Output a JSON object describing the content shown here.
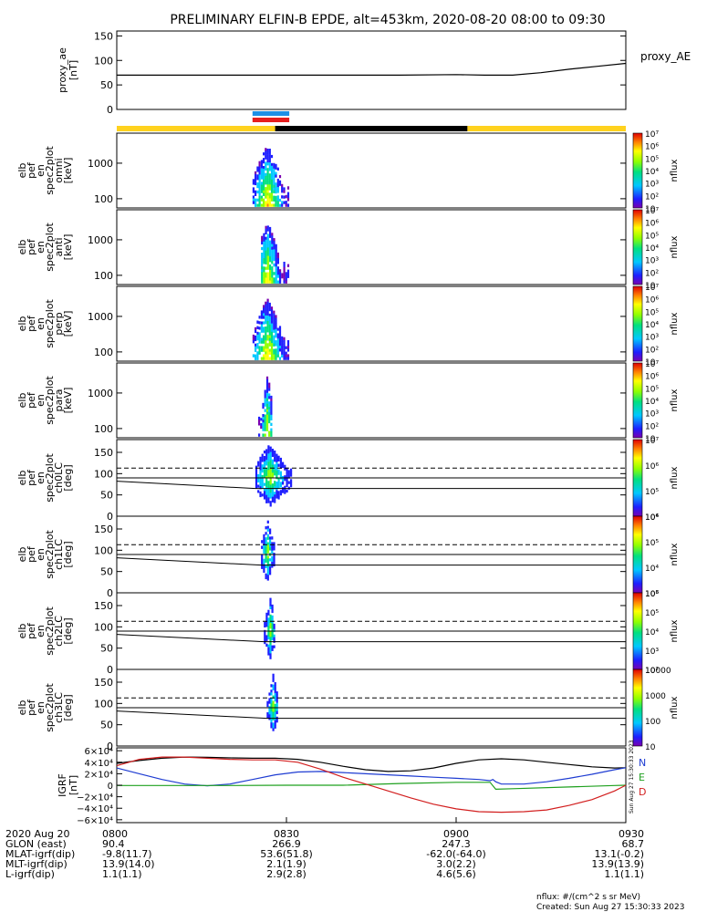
{
  "title": "PRELIMINARY ELFIN-B EPDE, alt=453km, 2020-08-20 08:00 to 09:30",
  "footer": {
    "units": "nflux: #/(cm^2 s sr MeV)",
    "created": "Created: Sun Aug 27 15:30:33 2023",
    "side_stamp": "Sun Aug 27 15:30:33 2023"
  },
  "colors": {
    "trace_black": "#000000",
    "bar_yellow": "#ffd21e",
    "bar_black": "#000000",
    "bar_blue": "#1e90e6",
    "bar_red": "#e61e1e",
    "grf_n": "#1e3cd2",
    "grf_e": "#1ea01e",
    "grf_d": "#d21e1e",
    "grf_total": "#000000"
  },
  "time_axis": {
    "start": "08:00",
    "end": "09:30",
    "ticks": [
      {
        "t": 0,
        "label": "0800"
      },
      {
        "t": 30,
        "label": "0830"
      },
      {
        "t": 60,
        "label": "0900"
      },
      {
        "t": 90,
        "label": "0930"
      }
    ]
  },
  "ephemeris": {
    "rows": [
      {
        "name": "2020 Aug 20",
        "values": [
          "0800",
          "0830",
          "0900",
          "0930"
        ]
      },
      {
        "name": "GLON (east)",
        "values": [
          "90.4",
          "266.9",
          "247.3",
          "68.7"
        ]
      },
      {
        "name": "MLAT-igrf(dip)",
        "values": [
          "-9.8(11.7)",
          "53.6(51.8)",
          "-62.0(-64.0)",
          "13.1(-0.2)"
        ]
      },
      {
        "name": "MLT-igrf(dip)",
        "values": [
          "13.9(14.0)",
          "2.1(1.9)",
          "3.0(2.2)",
          "13.9(13.9)"
        ]
      },
      {
        "name": "L-igrf(dip)",
        "values": [
          "1.1(1.1)",
          "2.9(2.8)",
          "4.6(5.6)",
          "1.1(1.1)"
        ]
      }
    ]
  },
  "chart_data": [
    {
      "type": "line",
      "ylabel": [
        "proxy_ae",
        "[nT]"
      ],
      "ylim": [
        0,
        160
      ],
      "yticks": [
        {
          "v": 0,
          "label": "0"
        },
        {
          "v": 50,
          "label": "50"
        },
        {
          "v": 100,
          "label": "100"
        },
        {
          "v": 150,
          "label": "150"
        }
      ],
      "series": [
        {
          "name": "proxy_AE",
          "x": [
            0,
            10,
            20,
            30,
            40,
            50,
            60,
            65,
            70,
            75,
            80,
            85,
            90
          ],
          "y": [
            70,
            70,
            70,
            70,
            70,
            70,
            71,
            70,
            70,
            75,
            82,
            88,
            94
          ]
        }
      ]
    },
    {
      "type": "bar",
      "segments": [
        {
          "t0": 0,
          "t1": 28,
          "color": "bar_yellow"
        },
        {
          "t0": 28,
          "t1": 62,
          "color": "bar_black"
        },
        {
          "t0": 62,
          "t1": 90,
          "color": "bar_yellow"
        }
      ],
      "markers": [
        {
          "t0": 24,
          "t1": 30.5,
          "color": "bar_blue"
        },
        {
          "t0": 24,
          "t1": 30.5,
          "color": "bar_red"
        }
      ]
    },
    {
      "type": "heatmap",
      "ylabel": [
        "elb",
        "pef",
        "en",
        "spec2plot",
        "omni",
        "[keV]"
      ],
      "yscale": "log",
      "ylim": [
        55,
        7000
      ],
      "yticks": [
        {
          "v": 100,
          "label": "100"
        },
        {
          "v": 1000,
          "label": "1000"
        }
      ],
      "colorbar": {
        "label": "nflux",
        "scale": "log",
        "range": [
          10,
          10000000
        ],
        "ticks": [
          "10",
          "10²",
          "10³",
          "10⁴",
          "10⁵",
          "10⁶",
          "10⁷"
        ]
      },
      "burst": {
        "t0": 24,
        "t1": 30.5,
        "peak_t": 26.5
      }
    },
    {
      "type": "heatmap",
      "ylabel": [
        "elb",
        "pef",
        "en",
        "spec2plot",
        "anti",
        "[keV]"
      ],
      "yscale": "log",
      "ylim": [
        55,
        7000
      ],
      "yticks": [
        {
          "v": 100,
          "label": "100"
        },
        {
          "v": 1000,
          "label": "1000"
        }
      ],
      "colorbar": {
        "label": "nflux",
        "scale": "log",
        "range": [
          10,
          10000000
        ],
        "ticks": [
          "10",
          "10²",
          "10³",
          "10⁴",
          "10⁵",
          "10⁶",
          "10⁷"
        ]
      },
      "burst": {
        "t0": 25.5,
        "t1": 30.5,
        "peak_t": 26.5
      }
    },
    {
      "type": "heatmap",
      "ylabel": [
        "elb",
        "pef",
        "en",
        "spec2plot",
        "perp",
        "[keV]"
      ],
      "yscale": "log",
      "ylim": [
        55,
        7000
      ],
      "yticks": [
        {
          "v": 100,
          "label": "100"
        },
        {
          "v": 1000,
          "label": "1000"
        }
      ],
      "colorbar": {
        "label": "nflux",
        "scale": "log",
        "range": [
          10,
          10000000
        ],
        "ticks": [
          "10",
          "10²",
          "10³",
          "10⁴",
          "10⁵",
          "10⁶",
          "10⁷"
        ]
      },
      "burst": {
        "t0": 24,
        "t1": 30.5,
        "peak_t": 26.5
      }
    },
    {
      "type": "heatmap",
      "ylabel": [
        "elb",
        "pef",
        "en",
        "spec2plot",
        "para",
        "[keV]"
      ],
      "yscale": "log",
      "ylim": [
        55,
        7000
      ],
      "yticks": [
        {
          "v": 100,
          "label": "100"
        },
        {
          "v": 1000,
          "label": "1000"
        }
      ],
      "colorbar": {
        "label": "nflux",
        "scale": "log",
        "range": [
          10,
          10000000
        ],
        "ticks": [
          "10",
          "10²",
          "10³",
          "10⁴",
          "10⁵",
          "10⁶",
          "10⁷"
        ]
      },
      "burst": {
        "t0": 25,
        "t1": 27.5,
        "peak_t": 26.5
      }
    },
    {
      "type": "heatmap",
      "ylabel": [
        "elb",
        "pef",
        "en",
        "spec2plot",
        "ch0LC",
        "[deg]"
      ],
      "ylim": [
        0,
        180
      ],
      "yticks": [
        {
          "v": 0,
          "label": "0"
        },
        {
          "v": 50,
          "label": "50"
        },
        {
          "v": 100,
          "label": "100"
        },
        {
          "v": 150,
          "label": "150"
        }
      ],
      "colorbar": {
        "label": "nflux",
        "scale": "log",
        "range": [
          10000,
          10000000
        ],
        "ticks": [
          "10⁴",
          "10⁵",
          "10⁶",
          "10⁷"
        ]
      },
      "lines": {
        "solid_top": 90,
        "solid_bottom": 65,
        "dashed": 113
      },
      "burst": {
        "t0": 24.5,
        "t1": 31,
        "peak_t": 27
      }
    },
    {
      "type": "heatmap",
      "ylabel": [
        "elb",
        "pef",
        "en",
        "spec2plot",
        "ch1LC",
        "[deg]"
      ],
      "ylim": [
        0,
        180
      ],
      "yticks": [
        {
          "v": 0,
          "label": "0"
        },
        {
          "v": 50,
          "label": "50"
        },
        {
          "v": 100,
          "label": "100"
        },
        {
          "v": 150,
          "label": "150"
        }
      ],
      "colorbar": {
        "label": "nflux",
        "scale": "log",
        "range": [
          1000,
          1000000
        ],
        "ticks": [
          "10³",
          "10⁴",
          "10⁵",
          "10⁶"
        ]
      },
      "lines": {
        "solid_top": 90,
        "solid_bottom": 65,
        "dashed": 113
      },
      "burst": {
        "t0": 25.5,
        "t1": 28,
        "peak_t": 26.5
      }
    },
    {
      "type": "heatmap",
      "ylabel": [
        "elb",
        "pef",
        "en",
        "spec2plot",
        "ch2LC",
        "[deg]"
      ],
      "ylim": [
        0,
        180
      ],
      "yticks": [
        {
          "v": 0,
          "label": "0"
        },
        {
          "v": 50,
          "label": "50"
        },
        {
          "v": 100,
          "label": "100"
        },
        {
          "v": 150,
          "label": "150"
        }
      ],
      "colorbar": {
        "label": "nflux",
        "scale": "log",
        "range": [
          100,
          1000000
        ],
        "ticks": [
          "10²",
          "10³",
          "10⁴",
          "10⁵",
          "10⁶"
        ]
      },
      "lines": {
        "solid_top": 90,
        "solid_bottom": 65,
        "dashed": 113
      },
      "burst": {
        "t0": 26,
        "t1": 28,
        "peak_t": 27
      }
    },
    {
      "type": "heatmap",
      "ylabel": [
        "elb",
        "pef",
        "en",
        "spec2plot",
        "ch3LC",
        "[deg]"
      ],
      "ylim": [
        0,
        180
      ],
      "yticks": [
        {
          "v": 0,
          "label": "0"
        },
        {
          "v": 50,
          "label": "50"
        },
        {
          "v": 100,
          "label": "100"
        },
        {
          "v": 150,
          "label": "150"
        }
      ],
      "colorbar": {
        "label": "nflux",
        "scale": "log",
        "range": [
          10,
          10000
        ],
        "ticks": [
          "10",
          "100",
          "1000",
          "10000"
        ]
      },
      "lines": {
        "solid_top": 90,
        "solid_bottom": 65,
        "dashed": 113
      },
      "burst": {
        "t0": 26.5,
        "t1": 28.5,
        "peak_t": 27.5
      }
    },
    {
      "type": "line",
      "ylabel": [
        "IGRF",
        "[nT]"
      ],
      "ylim": [
        -65000,
        65000
      ],
      "yticks": [
        {
          "v": 60000,
          "label": "6×10⁴"
        },
        {
          "v": 40000,
          "label": "4×10⁴"
        },
        {
          "v": 20000,
          "label": "2×10⁴"
        },
        {
          "v": 0,
          "label": "0"
        },
        {
          "v": -20000,
          "label": "−2×10⁴"
        },
        {
          "v": -40000,
          "label": "−4×10⁴"
        },
        {
          "v": -60000,
          "label": "−6×10⁴"
        }
      ],
      "legend": [
        "N",
        "E",
        "D"
      ],
      "series": [
        {
          "key": "total",
          "x": [
            0,
            4,
            8,
            12,
            16,
            20,
            24,
            28,
            32,
            36,
            40,
            44,
            48,
            52,
            56,
            60,
            64,
            68,
            72,
            76,
            80,
            84,
            88,
            90
          ],
          "y": [
            38000,
            43000,
            47000,
            49000,
            48500,
            47500,
            47000,
            47000,
            45000,
            40000,
            33000,
            27000,
            24000,
            25000,
            30000,
            38000,
            44000,
            46000,
            44000,
            40000,
            36000,
            32000,
            30000,
            30500
          ]
        },
        {
          "key": "N",
          "x": [
            0,
            4,
            8,
            12,
            16,
            20,
            24,
            28,
            32,
            36,
            40,
            44,
            48,
            52,
            56,
            60,
            64,
            66,
            66.5,
            67,
            68,
            72,
            76,
            80,
            84,
            88,
            90
          ],
          "y": [
            30000,
            20000,
            10000,
            2000,
            -1000,
            2000,
            10000,
            18000,
            23000,
            24000,
            22000,
            20000,
            18000,
            16000,
            14000,
            12000,
            10000,
            8000,
            10000,
            6000,
            2000,
            2000,
            6000,
            12000,
            19000,
            27000,
            30500
          ]
        },
        {
          "key": "E",
          "x": [
            0,
            10,
            20,
            30,
            40,
            50,
            60,
            66,
            67,
            70,
            80,
            88,
            90
          ],
          "y": [
            -500,
            -500,
            -500,
            0,
            0,
            3000,
            5000,
            5000,
            -7000,
            -6000,
            -3000,
            -500,
            0
          ]
        },
        {
          "key": "D",
          "x": [
            0,
            4,
            8,
            12,
            16,
            20,
            24,
            28,
            32,
            36,
            40,
            44,
            48,
            52,
            56,
            60,
            64,
            68,
            72,
            76,
            80,
            84,
            88,
            90
          ],
          "y": [
            34000,
            45000,
            49000,
            49000,
            47000,
            45000,
            44000,
            44000,
            40000,
            28000,
            14000,
            2000,
            -10000,
            -22000,
            -33000,
            -41000,
            -46000,
            -47000,
            -46000,
            -43000,
            -35000,
            -25000,
            -10000,
            0
          ]
        }
      ]
    }
  ]
}
